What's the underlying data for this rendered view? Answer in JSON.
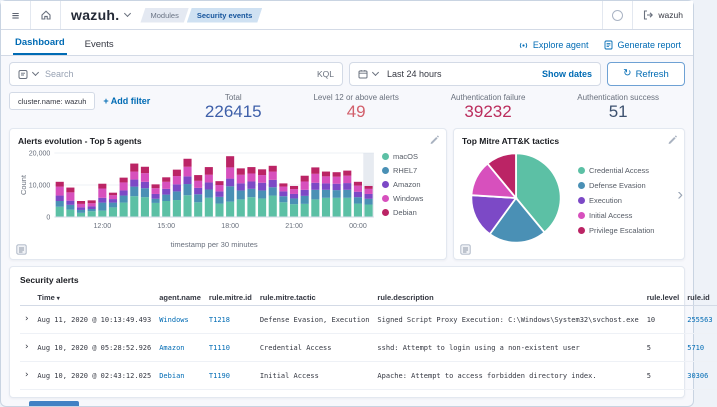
{
  "header": {
    "logo": "wazuh.",
    "breadcrumbs": [
      {
        "label": "Modules"
      },
      {
        "label": "Security events"
      }
    ],
    "api_name": "wazuh"
  },
  "icons": {
    "hamburger": "≡",
    "refresh": "↻",
    "expand_row": "›",
    "carousel_next": "›",
    "sort_desc": "▾"
  },
  "tabs": {
    "items": [
      {
        "label": "Dashboard"
      },
      {
        "label": "Events"
      }
    ],
    "actions": [
      {
        "label": "Explore agent"
      },
      {
        "label": "Generate report"
      }
    ]
  },
  "query_bar": {
    "search_placeholder": "Search",
    "language": "KQL",
    "time_range": "Last 24 hours",
    "show_dates_label": "Show dates",
    "refresh_label": "Refresh"
  },
  "filters": {
    "pill": "cluster.name: wazuh",
    "add_filter_label": "+ Add filter"
  },
  "stats": {
    "items": [
      {
        "label": "Total",
        "value": "226415",
        "color": "#3e5fa9"
      },
      {
        "label": "Level 12 or above alerts",
        "value": "49",
        "color": "#d25f6b"
      },
      {
        "label": "Authentication failure",
        "value": "39232",
        "color": "#bb2d5d"
      },
      {
        "label": "Authentication success",
        "value": "51",
        "color": "#3d516f"
      }
    ]
  },
  "chart_data": [
    {
      "type": "bar",
      "stacked": true,
      "title": "Alerts evolution - Top 5 agents",
      "xlabel": "timestamp per 30 minutes",
      "ylabel": "Count",
      "ylim": [
        0,
        20000
      ],
      "grid": true,
      "legend_position": "right",
      "highlight_last_bucket": true,
      "yticks": [
        {
          "v": 0,
          "label": "0"
        },
        {
          "v": 10000,
          "label": "10,000"
        },
        {
          "v": 20000,
          "label": "20,000"
        }
      ],
      "xticks": [
        {
          "i": 4,
          "label": "12:00"
        },
        {
          "i": 10,
          "label": "15:00"
        },
        {
          "i": 16,
          "label": "18:00"
        },
        {
          "i": 22,
          "label": "21:00"
        },
        {
          "i": 28,
          "label": "00:00"
        }
      ],
      "series": [
        {
          "name": "macOS",
          "color": "#5cc0a5",
          "values": [
            3200,
            2300,
            1300,
            1800,
            2000,
            3000,
            4500,
            6500,
            6200,
            4400,
            5000,
            5300,
            6800,
            4600,
            6000,
            4200,
            4800,
            5500,
            6200,
            5800,
            6700,
            4600,
            4000,
            4100,
            5500,
            6000,
            6000,
            6000,
            4200,
            3900
          ]
        },
        {
          "name": "RHEL7",
          "color": "#4a90b5",
          "values": [
            1800,
            1500,
            900,
            700,
            2500,
            1500,
            2200,
            3000,
            2800,
            1300,
            2000,
            2700,
            3500,
            2500,
            2600,
            2100,
            4800,
            2800,
            2600,
            2500,
            2600,
            1900,
            1800,
            2500,
            3000,
            2500,
            2400,
            2500,
            2000,
            1800
          ]
        },
        {
          "name": "Amazon",
          "color": "#7c49c6",
          "values": [
            1700,
            1300,
            800,
            800,
            1500,
            1100,
            1600,
            2200,
            2000,
            1500,
            1800,
            2200,
            2400,
            2000,
            2200,
            1700,
            2400,
            2200,
            2300,
            2400,
            2300,
            1500,
            1400,
            1900,
            2200,
            2000,
            2000,
            2100,
            1700,
            1500
          ]
        },
        {
          "name": "Windows",
          "color": "#d750bd",
          "values": [
            2800,
            2600,
            1100,
            1000,
            2900,
            1200,
            2500,
            2500,
            2700,
            1800,
            2200,
            2600,
            3000,
            2200,
            2400,
            2000,
            3500,
            2700,
            2500,
            2400,
            2600,
            1500,
            1500,
            2600,
            2800,
            2200,
            2200,
            2300,
            1900,
            1600
          ]
        },
        {
          "name": "Debian",
          "color": "#bb2465",
          "values": [
            1500,
            1500,
            900,
            900,
            1500,
            800,
            1500,
            2500,
            2000,
            1200,
            1400,
            2000,
            2500,
            1800,
            2400,
            1200,
            3500,
            2000,
            2000,
            1800,
            1800,
            1000,
            1000,
            1800,
            2000,
            1500,
            1400,
            1600,
            1200,
            900
          ]
        }
      ]
    },
    {
      "type": "pie",
      "title": "Top Mitre ATT&K tactics",
      "legend_position": "right",
      "labels": [
        "Credential Access",
        "Defense Evasion",
        "Execution",
        "Initial Access",
        "Privilege Escalation"
      ],
      "values": [
        39,
        21,
        16,
        13,
        11
      ],
      "colors": [
        "#5cc0a5",
        "#4a90b5",
        "#7c49c6",
        "#d750bd",
        "#bb2465"
      ]
    }
  ],
  "security_alerts": {
    "title": "Security alerts",
    "columns": [
      "Time",
      "agent.name",
      "rule.mitre.id",
      "rule.mitre.tactic",
      "rule.description",
      "rule.level",
      "rule.id"
    ],
    "rows": [
      {
        "time": "Aug 11, 2020 @ 10:13:49.493",
        "agent": "Windows",
        "mitre_id": "T1218",
        "tactic": "Defense Evasion, Execution",
        "description": "Signed Script Proxy Execution: C:\\Windows\\System32\\svchost.exe",
        "level": "10",
        "rule_id": "255563"
      },
      {
        "time": "Aug 10, 2020 @ 05:28:52.926",
        "agent": "Amazon",
        "mitre_id": "T1110",
        "tactic": "Credential Access",
        "description": "sshd: Attempt to login using a non-existent user",
        "level": "5",
        "rule_id": "5710"
      },
      {
        "time": "Aug 10, 2020 @ 02:43:12.025",
        "agent": "Debian",
        "mitre_id": "T1190",
        "tactic": "Initial Access",
        "description": "Apache: Attempt to access forbidden directory index.",
        "level": "5",
        "rule_id": "30306"
      }
    ]
  }
}
